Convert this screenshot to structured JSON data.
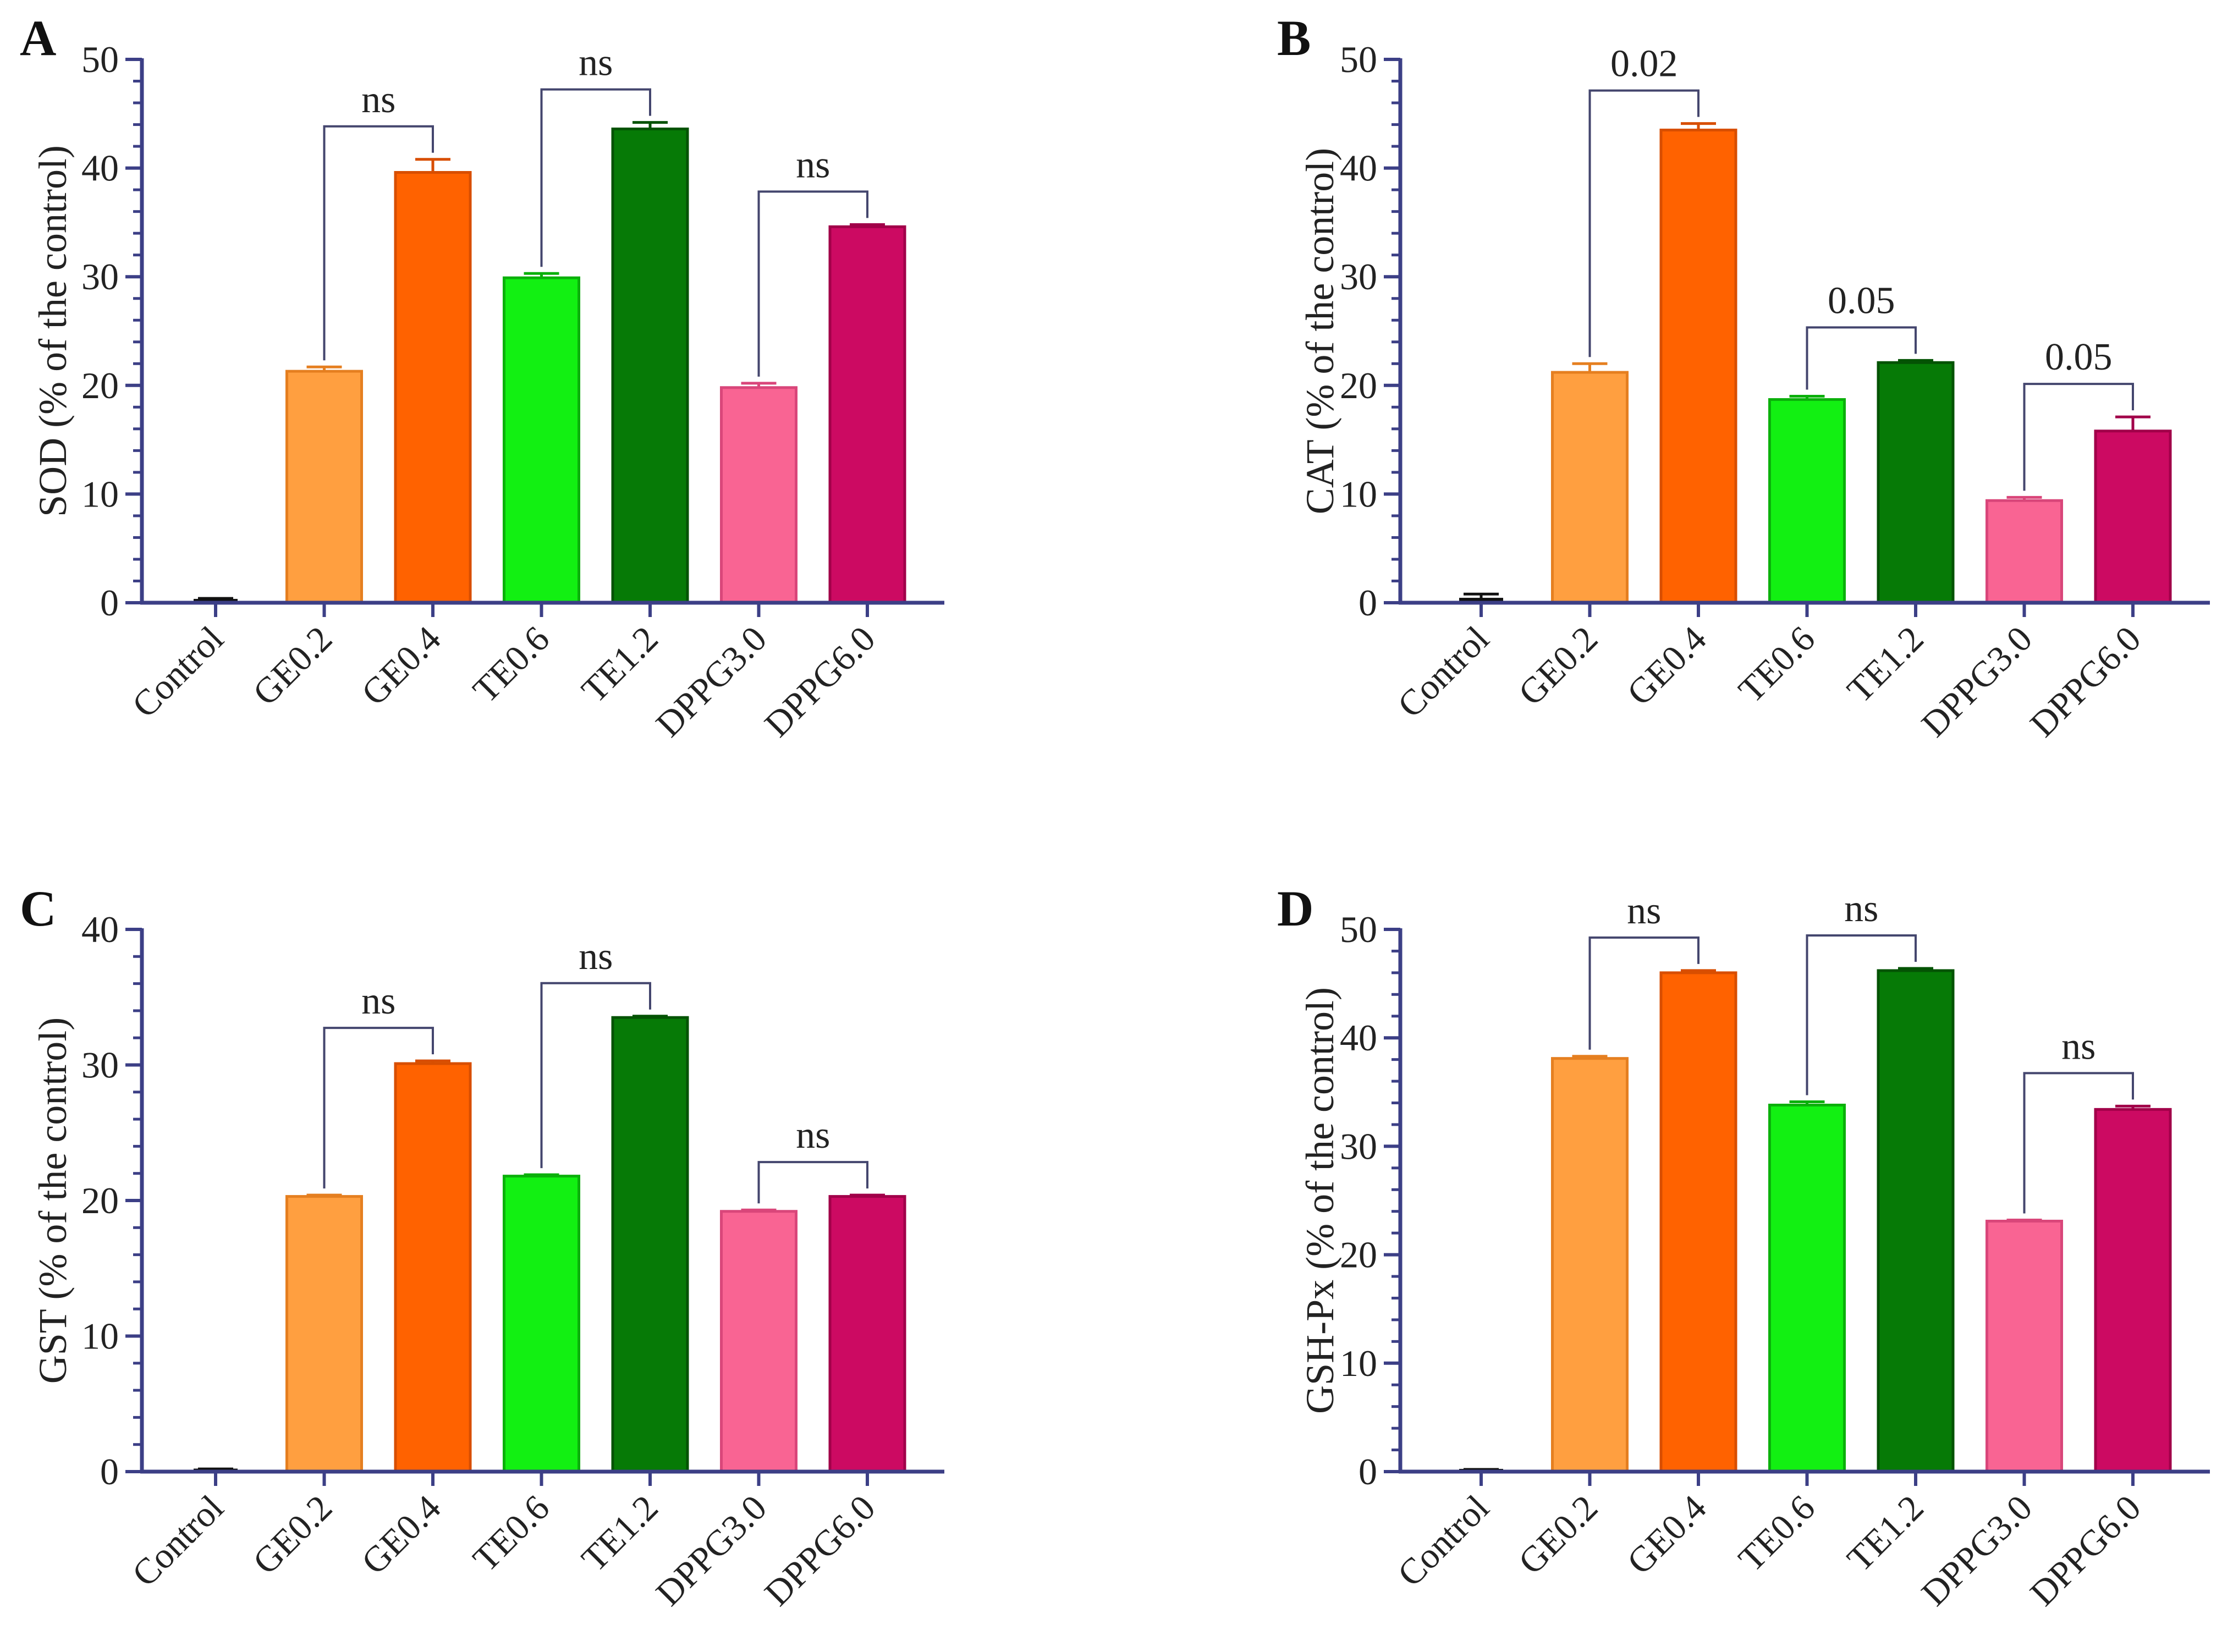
{
  "chart_data": [
    {
      "type": "bar",
      "panel": "A",
      "title": "",
      "xlabel": "",
      "ylabel": "SOD (% of the control)",
      "ylim": [
        0,
        50
      ],
      "yticks": [
        0,
        10,
        20,
        30,
        40,
        50
      ],
      "categories": [
        "Control",
        "GE0.2",
        "GE0.4",
        "TE0.6",
        "TE1.2",
        "DPPG3.0",
        "DPPG6.0"
      ],
      "values": [
        0.2,
        21.3,
        39.6,
        29.9,
        43.6,
        19.8,
        34.6
      ],
      "errors": [
        0.2,
        0.4,
        1.2,
        0.4,
        0.6,
        0.4,
        0.2
      ],
      "comparisons": [
        {
          "from": 1,
          "to": 2,
          "label": "ns"
        },
        {
          "from": 3,
          "to": 4,
          "label": "ns"
        },
        {
          "from": 5,
          "to": 6,
          "label": "ns"
        }
      ]
    },
    {
      "type": "bar",
      "panel": "B",
      "title": "",
      "xlabel": "",
      "ylabel": "CAT (% of the control)",
      "ylim": [
        0,
        50
      ],
      "yticks": [
        0,
        10,
        20,
        30,
        40,
        50
      ],
      "categories": [
        "Control",
        "GE0.2",
        "GE0.4",
        "TE0.6",
        "TE1.2",
        "DPPG3.0",
        "DPPG6.0"
      ],
      "values": [
        0.3,
        21.2,
        43.5,
        18.7,
        22.1,
        9.4,
        15.8
      ],
      "errors": [
        0.5,
        0.8,
        0.6,
        0.3,
        0.2,
        0.3,
        1.3
      ],
      "comparisons": [
        {
          "from": 1,
          "to": 2,
          "label": "0.02"
        },
        {
          "from": 3,
          "to": 4,
          "label": "0.05"
        },
        {
          "from": 5,
          "to": 6,
          "label": "0.05"
        }
      ]
    },
    {
      "type": "bar",
      "panel": "C",
      "title": "",
      "xlabel": "",
      "ylabel": "GST (% of the control)",
      "ylim": [
        0,
        40
      ],
      "yticks": [
        0,
        10,
        20,
        30,
        40
      ],
      "categories": [
        "Control",
        "GE0.2",
        "GE0.4",
        "TE0.6",
        "TE1.2",
        "DPPG3.0",
        "DPPG6.0"
      ],
      "values": [
        0.1,
        20.3,
        30.1,
        21.8,
        33.5,
        19.2,
        20.3
      ],
      "errors": [
        0.1,
        0.1,
        0.2,
        0.1,
        0.1,
        0.1,
        0.1
      ],
      "comparisons": [
        {
          "from": 1,
          "to": 2,
          "label": "ns"
        },
        {
          "from": 3,
          "to": 4,
          "label": "ns"
        },
        {
          "from": 5,
          "to": 6,
          "label": "ns"
        }
      ]
    },
    {
      "type": "bar",
      "panel": "D",
      "title": "",
      "xlabel": "",
      "ylabel": "GSH-Px (% of the control)",
      "ylim": [
        0,
        50
      ],
      "yticks": [
        0,
        10,
        20,
        30,
        40,
        50
      ],
      "categories": [
        "Control",
        "GE0.2",
        "GE0.4",
        "TE0.6",
        "TE1.2",
        "DPPG3.0",
        "DPPG6.0"
      ],
      "values": [
        0.1,
        38.1,
        46.0,
        33.8,
        46.2,
        23.1,
        33.4
      ],
      "errors": [
        0.1,
        0.2,
        0.2,
        0.3,
        0.2,
        0.1,
        0.3
      ],
      "comparisons": [
        {
          "from": 1,
          "to": 2,
          "label": "ns"
        },
        {
          "from": 3,
          "to": 4,
          "label": "ns"
        },
        {
          "from": 5,
          "to": 6,
          "label": "ns"
        }
      ]
    }
  ],
  "colors": {
    "axis": "#3c3f86",
    "bracket": "#44466e",
    "bars": [
      "#111111",
      "#ff9f40",
      "#ff6200",
      "#12f012",
      "#067a06",
      "#f96493",
      "#cc0a62"
    ],
    "bar_edges": [
      "#111111",
      "#e57f20",
      "#d84e00",
      "#0bb00b",
      "#045304",
      "#d9467a",
      "#a10049"
    ]
  }
}
